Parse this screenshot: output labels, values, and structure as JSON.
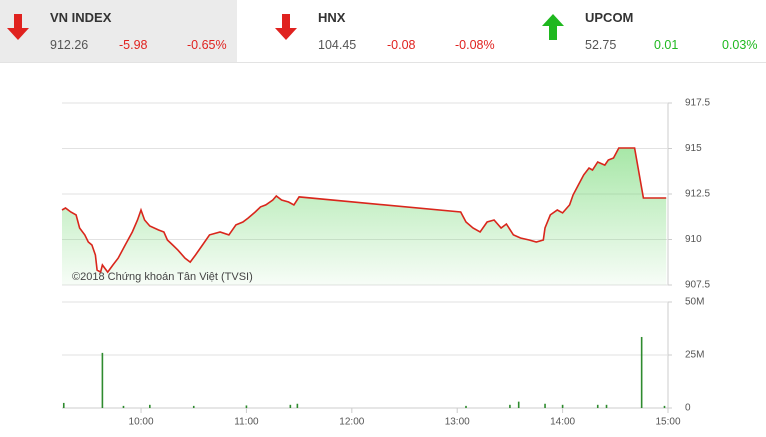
{
  "header": {
    "indices": [
      {
        "name": "VN INDEX",
        "value": "912.26",
        "change": "-5.98",
        "pct": "-0.65%",
        "color": "#e0221f"
      },
      {
        "name": "HNX",
        "value": "104.45",
        "change": "-0.08",
        "pct": "-0.08%",
        "color": "#e0221f"
      },
      {
        "name": "UPCOM",
        "value": "52.75",
        "change": "0.01",
        "pct": "0.03%",
        "color": "#1fb81f"
      }
    ]
  },
  "chart_data": [
    {
      "type": "line",
      "annotation": "©2018 Chứng khoán Tân Việt (TVSI)",
      "x": [
        "09:15",
        "09:17",
        "09:20",
        "09:23",
        "09:25",
        "09:28",
        "09:30",
        "09:32",
        "09:34",
        "09:35",
        "09:37",
        "09:38",
        "09:41",
        "09:44",
        "09:47",
        "09:51",
        "09:55",
        "09:58",
        "10:00",
        "10:02",
        "10:05",
        "10:10",
        "10:13",
        "10:15",
        "10:18",
        "10:21",
        "10:25",
        "10:28",
        "10:31",
        "10:35",
        "10:39",
        "10:45",
        "10:50",
        "10:54",
        "10:58",
        "11:01",
        "11:05",
        "11:08",
        "11:11",
        "11:15",
        "11:17",
        "11:20",
        "11:24",
        "11:27",
        "11:30",
        "13:02",
        "13:05",
        "13:09",
        "13:13",
        "13:17",
        "13:21",
        "13:25",
        "13:28",
        "13:32",
        "13:36",
        "13:41",
        "13:45",
        "13:49",
        "13:50",
        "13:53",
        "13:57",
        "14:00",
        "14:04",
        "14:06",
        "14:09",
        "14:12",
        "14:15",
        "14:17",
        "14:20",
        "14:24",
        "14:26",
        "14:29",
        "14:32",
        "14:41",
        "14:46",
        "14:59"
      ],
      "series": [
        {
          "color": "#d9261c",
          "values": [
            911.62,
            911.73,
            911.51,
            911.35,
            910.63,
            910.25,
            909.86,
            909.7,
            909.15,
            908.32,
            908.21,
            908.6,
            908.21,
            908.6,
            908.98,
            909.7,
            910.41,
            911.07,
            911.62,
            911.07,
            910.74,
            910.52,
            910.41,
            909.97,
            909.7,
            909.42,
            908.98,
            908.76,
            909.15,
            909.7,
            910.25,
            910.41,
            910.25,
            910.8,
            910.96,
            911.18,
            911.51,
            911.79,
            911.9,
            912.17,
            912.39,
            912.17,
            912.06,
            911.9,
            912.34,
            911.51,
            910.96,
            910.63,
            910.41,
            910.96,
            911.07,
            910.63,
            910.85,
            910.25,
            910.08,
            909.97,
            909.86,
            909.97,
            910.63,
            911.35,
            911.62,
            911.46,
            911.9,
            912.45,
            913.0,
            913.55,
            913.93,
            913.82,
            914.26,
            914.09,
            914.37,
            914.48,
            915.03,
            915.03,
            912.28,
            912.28
          ]
        }
      ],
      "fill_color": "#5fd35f",
      "xlim": [
        "09:15",
        "15:00"
      ],
      "ylim": [
        907.5,
        917.5
      ],
      "yticks": [
        907.5,
        910,
        912.5,
        915,
        917.5
      ],
      "grid": true
    },
    {
      "type": "bar",
      "x": [
        "09:16",
        "09:38",
        "09:50",
        "10:05",
        "10:30",
        "11:00",
        "11:25",
        "11:29",
        "13:05",
        "13:30",
        "13:35",
        "13:50",
        "14:00",
        "14:20",
        "14:25",
        "14:45",
        "14:58"
      ],
      "series": [
        {
          "color": "#2e8b2e",
          "values": [
            2400000,
            26000000,
            1000000,
            1500000,
            1000000,
            1200000,
            1500000,
            2000000,
            1000000,
            1500000,
            3000000,
            2000000,
            1500000,
            1500000,
            1500000,
            33500000,
            1000000
          ]
        }
      ],
      "xlim": [
        "09:15",
        "15:00"
      ],
      "xticks": [
        "10:00",
        "11:00",
        "12:00",
        "13:00",
        "14:00",
        "15:00"
      ],
      "ylim": [
        0,
        50000000
      ],
      "yticks": [
        0,
        {
          "value": 25000000,
          "label": "25M"
        },
        {
          "value": 50000000,
          "label": "50M"
        }
      ],
      "grid": true
    }
  ]
}
